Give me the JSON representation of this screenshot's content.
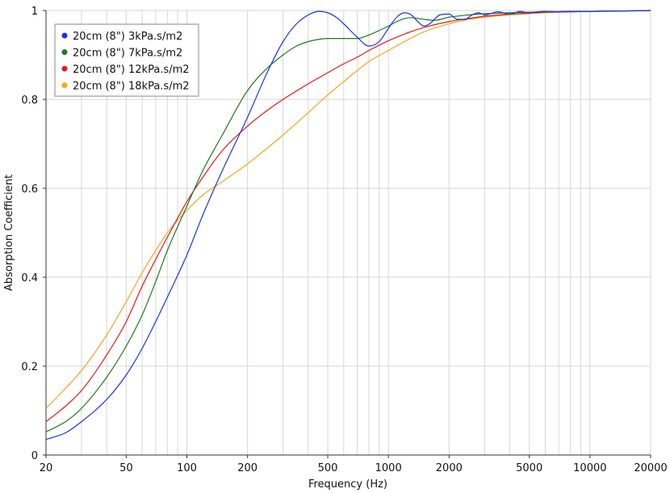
{
  "chart_data": {
    "type": "line",
    "xlabel": "Frequency (Hz)",
    "ylabel": "Absorption Coefficient",
    "x_scale": "log",
    "xlim": [
      20,
      20000
    ],
    "ylim": [
      0,
      1
    ],
    "grid": true,
    "legend_position": "top-left",
    "x_ticks": [
      {
        "value": 20,
        "label": "20"
      },
      {
        "value": 50,
        "label": "50"
      },
      {
        "value": 100,
        "label": "100"
      },
      {
        "value": 200,
        "label": "200"
      },
      {
        "value": 500,
        "label": "500"
      },
      {
        "value": 1000,
        "label": "1000"
      },
      {
        "value": 2000,
        "label": "2000"
      },
      {
        "value": 5000,
        "label": "5000"
      },
      {
        "value": 10000,
        "label": "10000"
      },
      {
        "value": 20000,
        "label": "20000"
      }
    ],
    "y_ticks": [
      {
        "value": 0,
        "label": "0"
      },
      {
        "value": 0.2,
        "label": "0.2"
      },
      {
        "value": 0.4,
        "label": "0.4"
      },
      {
        "value": 0.6,
        "label": "0.6"
      },
      {
        "value": 0.8,
        "label": "0.8"
      },
      {
        "value": 1,
        "label": "1"
      }
    ],
    "series": [
      {
        "name": "20cm (8\") 3kPa.s/m2",
        "color": "#1a33e6",
        "x": [
          20,
          25,
          30,
          40,
          50,
          60,
          70,
          80,
          100,
          120,
          150,
          200,
          250,
          300,
          350,
          400,
          450,
          500,
          550,
          600,
          700,
          800,
          900,
          1000,
          1100,
          1200,
          1300,
          1400,
          1500,
          1600,
          1800,
          2000,
          2200,
          2400,
          2600,
          2800,
          3000,
          3500,
          4000,
          4500,
          5000,
          5500,
          6000,
          7000,
          8000,
          10000,
          12000,
          15000,
          20000
        ],
        "y": [
          0.035,
          0.05,
          0.075,
          0.125,
          0.18,
          0.24,
          0.3,
          0.355,
          0.45,
          0.54,
          0.64,
          0.76,
          0.86,
          0.93,
          0.97,
          0.99,
          0.998,
          0.995,
          0.985,
          0.97,
          0.94,
          0.92,
          0.93,
          0.96,
          0.985,
          0.995,
          0.99,
          0.975,
          0.965,
          0.97,
          0.99,
          0.992,
          0.98,
          0.98,
          0.99,
          0.995,
          0.99,
          0.997,
          0.992,
          0.998,
          0.995,
          0.997,
          0.998,
          0.997,
          0.998,
          0.998,
          0.999,
          0.999,
          1.0
        ]
      },
      {
        "name": "20cm (8\") 7kPa.s/m2",
        "color": "#1f7a1f",
        "x": [
          20,
          25,
          30,
          40,
          50,
          60,
          70,
          80,
          100,
          120,
          150,
          200,
          250,
          300,
          350,
          400,
          450,
          500,
          600,
          700,
          800,
          900,
          1000,
          1100,
          1200,
          1300,
          1400,
          1500,
          1700,
          2000,
          2500,
          3000,
          3500,
          4000,
          5000,
          6000,
          8000,
          10000,
          15000,
          20000
        ],
        "y": [
          0.052,
          0.075,
          0.105,
          0.175,
          0.245,
          0.315,
          0.39,
          0.46,
          0.56,
          0.64,
          0.72,
          0.82,
          0.87,
          0.9,
          0.92,
          0.93,
          0.935,
          0.937,
          0.937,
          0.937,
          0.945,
          0.955,
          0.965,
          0.975,
          0.982,
          0.984,
          0.982,
          0.98,
          0.978,
          0.985,
          0.99,
          0.993,
          0.994,
          0.995,
          0.996,
          0.997,
          0.998,
          0.998,
          0.999,
          1.0
        ]
      },
      {
        "name": "20cm (8\") 12kPa.s/m2",
        "color": "#e41a1a",
        "x": [
          20,
          25,
          30,
          40,
          50,
          60,
          70,
          80,
          100,
          120,
          150,
          200,
          250,
          300,
          400,
          500,
          600,
          700,
          800,
          1000,
          1200,
          1500,
          2000,
          2500,
          3000,
          4000,
          5000,
          6000,
          8000,
          10000,
          15000,
          20000
        ],
        "y": [
          0.075,
          0.11,
          0.145,
          0.225,
          0.3,
          0.38,
          0.44,
          0.49,
          0.57,
          0.625,
          0.685,
          0.74,
          0.775,
          0.8,
          0.835,
          0.86,
          0.88,
          0.895,
          0.91,
          0.932,
          0.947,
          0.962,
          0.975,
          0.982,
          0.987,
          0.992,
          0.994,
          0.996,
          0.997,
          0.998,
          0.999,
          1.0
        ]
      },
      {
        "name": "20cm (8\") 18kPa.s/m2",
        "color": "#f5a623",
        "x": [
          20,
          25,
          30,
          40,
          50,
          60,
          70,
          80,
          100,
          120,
          150,
          200,
          250,
          300,
          400,
          500,
          600,
          700,
          800,
          1000,
          1200,
          1500,
          2000,
          2500,
          3000,
          4000,
          5000,
          6000,
          8000,
          10000,
          15000,
          20000
        ],
        "y": [
          0.105,
          0.15,
          0.19,
          0.27,
          0.345,
          0.41,
          0.46,
          0.5,
          0.55,
          0.585,
          0.615,
          0.655,
          0.69,
          0.72,
          0.77,
          0.81,
          0.84,
          0.865,
          0.885,
          0.91,
          0.93,
          0.952,
          0.97,
          0.98,
          0.985,
          0.99,
          0.993,
          0.995,
          0.997,
          0.998,
          0.999,
          1.0
        ]
      }
    ]
  }
}
